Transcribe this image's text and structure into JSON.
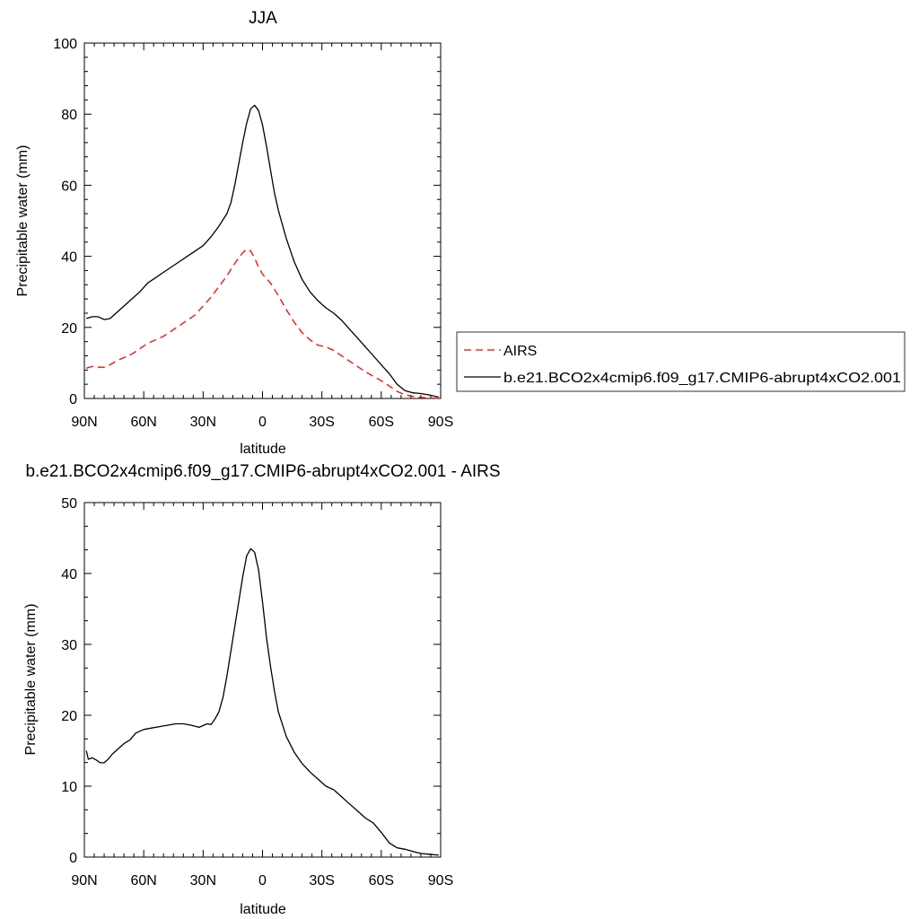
{
  "colors": {
    "obs": "#ff0000",
    "model": "#000000"
  },
  "chart_data": [
    {
      "type": "line",
      "title": "JJA",
      "xlabel": "latitude",
      "ylabel": "Precipitable water (mm)",
      "xlim": [
        90,
        -90
      ],
      "ylim": [
        0,
        100
      ],
      "x_major_ticks": [
        90,
        60,
        30,
        0,
        -30,
        -60,
        -90
      ],
      "x_tick_labels": [
        "90N",
        "60N",
        "30N",
        "0",
        "30S",
        "60S",
        "90S"
      ],
      "y_major_ticks": [
        0,
        20,
        40,
        60,
        80,
        100
      ],
      "y_tick_labels": [
        "0",
        "20",
        "40",
        "60",
        "80",
        "100"
      ],
      "legend": {
        "placement": "right",
        "entries": [
          {
            "label": "AIRS",
            "style": "dashed",
            "color": "#ff0000"
          },
          {
            "label": "b.e21.BCO2x4cmip6.f09_g17.CMIP6-abrupt4xCO2.001",
            "style": "solid",
            "color": "#000000"
          }
        ]
      },
      "series": [
        {
          "name": "AIRS",
          "style": "dashed",
          "color": "#ff0000",
          "x": [
            89,
            86,
            83,
            80,
            77,
            74,
            70,
            66,
            62,
            58,
            54,
            50,
            46,
            42,
            38,
            34,
            30,
            26,
            22,
            18,
            14,
            10,
            8,
            6,
            4,
            2,
            0,
            -4,
            -8,
            -12,
            -16,
            -20,
            -24,
            -28,
            -32,
            -36,
            -40,
            -44,
            -48,
            -52,
            -56,
            -60,
            -64,
            -68,
            -72,
            -76,
            -80,
            -84,
            -88,
            -89
          ],
          "y": [
            8.5,
            9,
            8.8,
            8.8,
            9.5,
            10.5,
            11.5,
            12.5,
            14,
            15.5,
            16.5,
            17.5,
            19,
            20.5,
            22,
            23.5,
            26,
            28.5,
            31.5,
            34.5,
            38,
            41,
            42,
            41.5,
            39.5,
            37,
            35,
            32.5,
            29,
            25,
            21.5,
            18.5,
            16.5,
            15,
            14.5,
            13.5,
            12,
            10.5,
            9,
            7.5,
            6.2,
            5,
            3.5,
            2,
            1,
            0.6,
            0.3,
            0.1,
            0.05,
            0
          ]
        },
        {
          "name": "b.e21.BCO2x4cmip6.f09_g17.CMIP6-abrupt4xCO2.001",
          "style": "solid",
          "color": "#000000",
          "x": [
            89,
            86,
            83,
            80,
            77,
            74,
            70,
            66,
            62,
            58,
            54,
            50,
            46,
            42,
            38,
            34,
            30,
            26,
            22,
            18,
            16,
            14,
            12,
            10,
            8,
            6,
            4,
            2,
            0,
            -2,
            -4,
            -6,
            -8,
            -12,
            -16,
            -20,
            -24,
            -28,
            -32,
            -36,
            -40,
            -44,
            -48,
            -52,
            -56,
            -60,
            -64,
            -68,
            -72,
            -76,
            -80,
            -84,
            -88,
            -89
          ],
          "y": [
            22.5,
            23,
            23,
            22.2,
            22.5,
            24,
            26,
            28,
            30,
            32.5,
            34,
            35.5,
            37,
            38.5,
            40,
            41.5,
            43,
            45.5,
            48.5,
            52,
            55,
            60,
            66,
            72,
            77.5,
            81.5,
            82.5,
            81,
            77,
            71,
            64.5,
            58,
            53,
            45,
            38.5,
            33.5,
            30,
            27.5,
            25.5,
            24,
            22,
            19.5,
            17,
            14.5,
            12,
            9.5,
            7,
            4,
            2.2,
            1.6,
            1.4,
            1,
            0.5,
            0.4
          ]
        }
      ]
    },
    {
      "type": "line",
      "title": "b.e21.BCO2x4cmip6.f09_g17.CMIP6-abrupt4xCO2.001 - AIRS",
      "xlabel": "latitude",
      "ylabel": "Precipitable water (mm)",
      "xlim": [
        90,
        -90
      ],
      "ylim": [
        0,
        50
      ],
      "x_major_ticks": [
        90,
        60,
        30,
        0,
        -30,
        -60,
        -90
      ],
      "x_tick_labels": [
        "90N",
        "60N",
        "30N",
        "0",
        "30S",
        "60S",
        "90S"
      ],
      "y_major_ticks": [
        0,
        10,
        20,
        30,
        40,
        50
      ],
      "y_tick_labels": [
        "0",
        "10",
        "20",
        "30",
        "40",
        "50"
      ],
      "series": [
        {
          "style": "solid",
          "color": "#000000",
          "x": [
            89,
            88,
            86,
            84,
            82,
            80,
            78,
            76,
            74,
            72,
            70,
            67,
            64,
            60,
            56,
            52,
            48,
            44,
            40,
            36,
            32,
            28,
            26,
            24,
            22,
            20,
            18,
            16,
            14,
            12,
            10,
            8,
            6,
            4,
            2,
            0,
            -2,
            -4,
            -6,
            -8,
            -12,
            -16,
            -20,
            -24,
            -28,
            -32,
            -36,
            -40,
            -44,
            -48,
            -52,
            -56,
            -60,
            -64,
            -68,
            -72,
            -76,
            -80,
            -84,
            -88,
            -89
          ],
          "y": [
            15,
            13.8,
            14,
            13.7,
            13.3,
            13.3,
            13.8,
            14.5,
            15,
            15.5,
            16,
            16.5,
            17.5,
            18,
            18.2,
            18.4,
            18.6,
            18.8,
            18.8,
            18.6,
            18.3,
            18.8,
            18.7,
            19.5,
            20.5,
            22.5,
            25.5,
            29,
            32.5,
            36,
            39.5,
            42.5,
            43.5,
            43,
            40.5,
            36,
            31,
            27,
            23.5,
            20.5,
            17,
            14.8,
            13.2,
            12,
            11,
            10,
            9.5,
            8.5,
            7.5,
            6.5,
            5.5,
            4.8,
            3.5,
            2,
            1.3,
            1.1,
            0.8,
            0.5,
            0.4,
            0.3,
            0.3
          ]
        }
      ]
    }
  ]
}
